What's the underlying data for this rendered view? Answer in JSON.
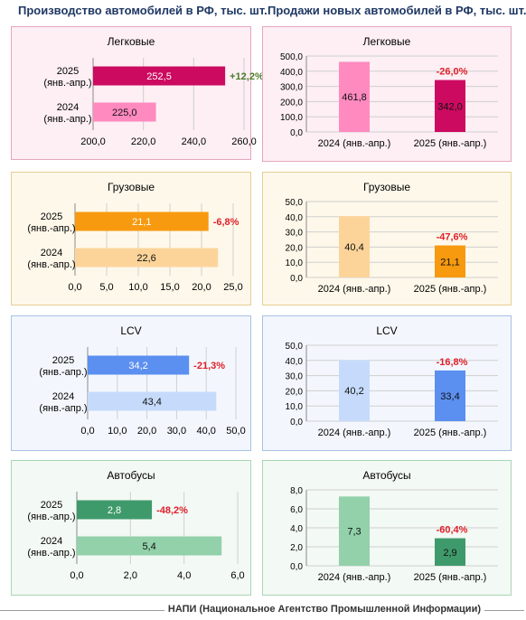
{
  "headers": {
    "production": "Производство автомобилей в РФ, тыс. шт.",
    "sales": "Продажи новых автомобилей в РФ, тыс. шт."
  },
  "footer": "НАПИ (Национальное Агентство Промышленной Информации)",
  "colors": {
    "neg": "#e0202a",
    "pos": "#4f7a28",
    "passenger": {
      "bg": "#fdeff4",
      "border": "#e7a5c0",
      "dark": "#cc0a5f",
      "light": "#ff8ac0"
    },
    "trucks": {
      "bg": "#fef8ea",
      "border": "#e6cf93",
      "dark": "#f79a10",
      "light": "#fcd49a"
    },
    "lcv": {
      "bg": "#f3f7fd",
      "border": "#a8c0e2",
      "dark": "#5b8ff0",
      "light": "#c6dbfb"
    },
    "buses": {
      "bg": "#f3f9f4",
      "border": "#a9d5b4",
      "dark": "#3f9a6b",
      "light": "#92d1aa"
    }
  },
  "chart_data": [
    {
      "type": "bar",
      "orientation": "horizontal",
      "section": "production",
      "segment": "passenger",
      "title": "Легковые",
      "categories": [
        "2025\n(янв.-апр.)",
        "2024\n(янв.-апр.)"
      ],
      "values": [
        252.5,
        225.0
      ],
      "value_labels": [
        "252,5",
        "225,0"
      ],
      "change": "+12,2%",
      "xlim": [
        200,
        260
      ],
      "ticks": [
        "200,0",
        "220,0",
        "240,0",
        "260,0"
      ]
    },
    {
      "type": "bar",
      "orientation": "vertical",
      "section": "sales",
      "segment": "passenger",
      "title": "Легковые",
      "categories": [
        "2024 (янв.-апр.)",
        "2025 (янв.-апр.)"
      ],
      "values": [
        461.8,
        342.0
      ],
      "value_labels": [
        "461,8",
        "342,0"
      ],
      "change": "-26,0%",
      "ylim": [
        0,
        500
      ],
      "ticks": [
        "0,0",
        "100,0",
        "200,0",
        "300,0",
        "400,0",
        "500,0"
      ]
    },
    {
      "type": "bar",
      "orientation": "horizontal",
      "section": "production",
      "segment": "trucks",
      "title": "Грузовые",
      "categories": [
        "2025\n(янв.-апр.)",
        "2024\n(янв.-апр.)"
      ],
      "values": [
        21.1,
        22.6
      ],
      "value_labels": [
        "21,1",
        "22,6"
      ],
      "change": "-6,8%",
      "xlim": [
        0,
        25
      ],
      "ticks": [
        "0,0",
        "5,0",
        "10,0",
        "15,0",
        "20,0",
        "25,0"
      ]
    },
    {
      "type": "bar",
      "orientation": "vertical",
      "section": "sales",
      "segment": "trucks",
      "title": "Грузовые",
      "categories": [
        "2024 (янв.-апр.)",
        "2025 (янв.-апр.)"
      ],
      "values": [
        40.4,
        21.1
      ],
      "value_labels": [
        "40,4",
        "21,1"
      ],
      "change": "-47,6%",
      "ylim": [
        0,
        50
      ],
      "ticks": [
        "0,0",
        "10,0",
        "20,0",
        "30,0",
        "40,0",
        "50,0"
      ]
    },
    {
      "type": "bar",
      "orientation": "horizontal",
      "section": "production",
      "segment": "lcv",
      "title": "LCV",
      "categories": [
        "2025\n(янв.-апр.)",
        "2024\n(янв.-апр.)"
      ],
      "values": [
        34.2,
        43.4
      ],
      "value_labels": [
        "34,2",
        "43,4"
      ],
      "change": "-21,3%",
      "xlim": [
        0,
        50
      ],
      "ticks": [
        "0,0",
        "10,0",
        "20,0",
        "30,0",
        "40,0",
        "50,0"
      ]
    },
    {
      "type": "bar",
      "orientation": "vertical",
      "section": "sales",
      "segment": "lcv",
      "title": "LCV",
      "categories": [
        "2024 (янв.-апр.)",
        "2025 (янв.-апр.)"
      ],
      "values": [
        40.2,
        33.4
      ],
      "value_labels": [
        "40,2",
        "33,4"
      ],
      "change": "-16,8%",
      "ylim": [
        0,
        50
      ],
      "ticks": [
        "0,0",
        "10,0",
        "20,0",
        "30,0",
        "40,0",
        "50,0"
      ]
    },
    {
      "type": "bar",
      "orientation": "horizontal",
      "section": "production",
      "segment": "buses",
      "title": "Автобусы",
      "categories": [
        "2025\n(янв.-апр.)",
        "2024\n(янв.-апр.)"
      ],
      "values": [
        2.8,
        5.4
      ],
      "value_labels": [
        "2,8",
        "5,4"
      ],
      "change": "-48,2%",
      "xlim": [
        0,
        6
      ],
      "ticks": [
        "0,0",
        "2,0",
        "4,0",
        "6,0"
      ]
    },
    {
      "type": "bar",
      "orientation": "vertical",
      "section": "sales",
      "segment": "buses",
      "title": "Автобусы",
      "categories": [
        "2024 (янв.-апр.)",
        "2025 (янв.-апр.)"
      ],
      "values": [
        7.3,
        2.9
      ],
      "value_labels": [
        "7,3",
        "2,9"
      ],
      "change": "-60,4%",
      "ylim": [
        0,
        8
      ],
      "ticks": [
        "0,0",
        "2,0",
        "4,0",
        "6,0",
        "8,0"
      ]
    }
  ]
}
